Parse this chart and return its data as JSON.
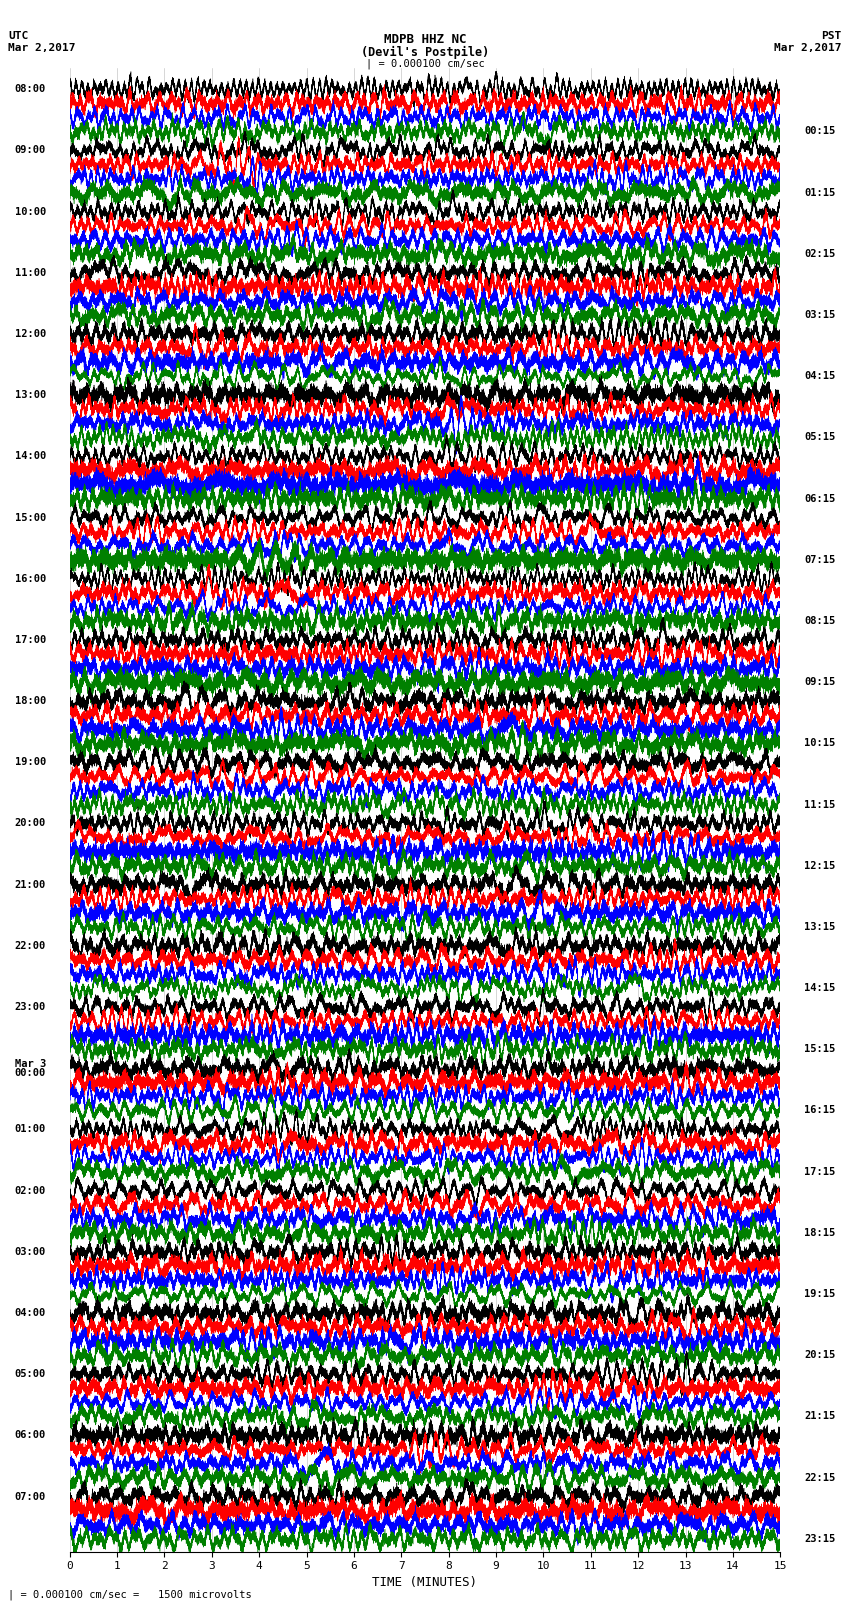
{
  "title_line1": "MDPB HHZ NC",
  "title_line2": "(Devil's Postpile)",
  "scale_label": "| = 0.000100 cm/sec",
  "footer_label": "| = 0.000100 cm/sec =   1500 microvolts",
  "xlabel": "TIME (MINUTES)",
  "utc_times_left": [
    "08:00",
    "09:00",
    "10:00",
    "11:00",
    "12:00",
    "13:00",
    "14:00",
    "15:00",
    "16:00",
    "17:00",
    "18:00",
    "19:00",
    "20:00",
    "21:00",
    "22:00",
    "23:00",
    "Mar 3\n00:00",
    "01:00",
    "02:00",
    "03:00",
    "04:00",
    "05:00",
    "06:00",
    "07:00"
  ],
  "pst_times_right": [
    "00:15",
    "01:15",
    "02:15",
    "03:15",
    "04:15",
    "05:15",
    "06:15",
    "07:15",
    "08:15",
    "09:15",
    "10:15",
    "11:15",
    "12:15",
    "13:15",
    "14:15",
    "15:15",
    "16:15",
    "17:15",
    "18:15",
    "19:15",
    "20:15",
    "21:15",
    "22:15",
    "23:15"
  ],
  "colors": [
    "black",
    "red",
    "blue",
    "green"
  ],
  "bg_color": "#ffffff",
  "n_hours": 24,
  "traces_per_hour": 4,
  "minutes": 15,
  "fs": 100,
  "seed": 42
}
